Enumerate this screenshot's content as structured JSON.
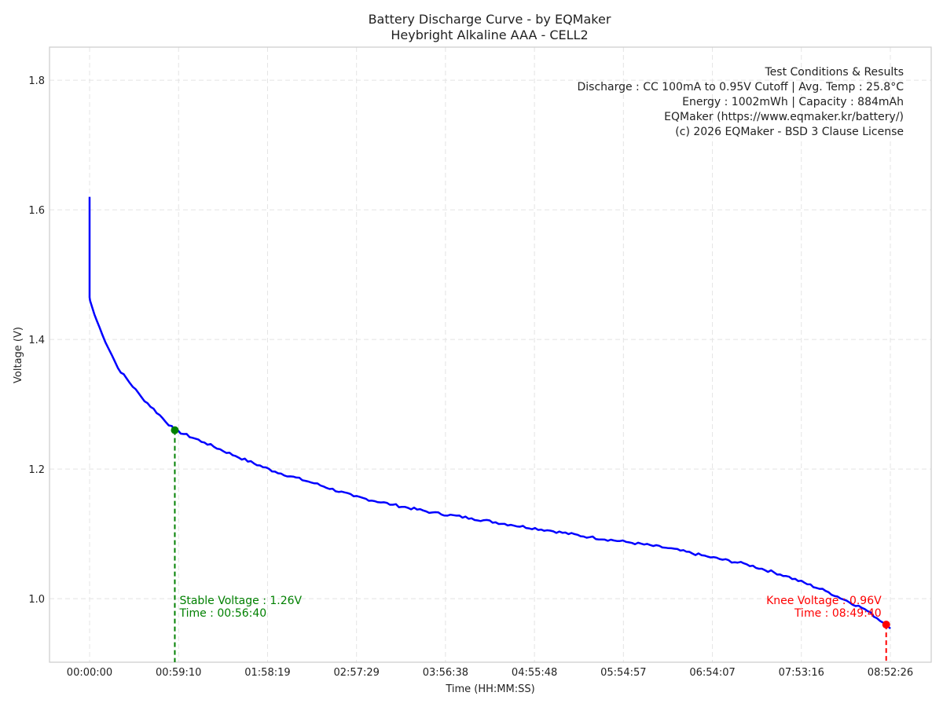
{
  "chart_data": {
    "type": "line",
    "title": "Battery Discharge Curve - by EQMaker",
    "subtitle": "Heybright Alkaline AAA - CELL2",
    "xlabel": "Time (HH:MM:SS)",
    "ylabel": "Voltage (V)",
    "xlim_seconds": [
      -1599,
      33576
    ],
    "ylim": [
      0.902,
      1.851
    ],
    "grid": true,
    "x_ticks": [
      {
        "t": 0,
        "label": "00:00:00"
      },
      {
        "t": 3550,
        "label": "00:59:10"
      },
      {
        "t": 7099,
        "label": "01:58:19"
      },
      {
        "t": 10649,
        "label": "02:57:29"
      },
      {
        "t": 14198,
        "label": "03:56:38"
      },
      {
        "t": 17748,
        "label": "04:55:48"
      },
      {
        "t": 21297,
        "label": "05:54:57"
      },
      {
        "t": 24847,
        "label": "06:54:07"
      },
      {
        "t": 28396,
        "label": "07:53:16"
      },
      {
        "t": 31946,
        "label": "08:52:26"
      }
    ],
    "y_ticks": [
      {
        "v": 1.0,
        "label": "1.0"
      },
      {
        "v": 1.2,
        "label": "1.2"
      },
      {
        "v": 1.4,
        "label": "1.4"
      },
      {
        "v": 1.6,
        "label": "1.6"
      },
      {
        "v": 1.8,
        "label": "1.8"
      }
    ],
    "series": [
      {
        "name": "Voltage",
        "color": "#0000ff",
        "x": [
          0,
          0,
          20,
          188,
          502,
          1130,
          2070,
          3400,
          4580,
          5830,
          7400,
          8970,
          10540,
          12100,
          13670,
          15240,
          16800,
          18380,
          19950,
          21520,
          23090,
          24650,
          26220,
          27790,
          29360,
          30920,
          31780,
          31946
        ],
        "y": [
          1.62,
          1.465,
          1.46,
          1.439,
          1.408,
          1.356,
          1.311,
          1.26,
          1.241,
          1.22,
          1.196,
          1.178,
          1.158,
          1.145,
          1.133,
          1.124,
          1.114,
          1.105,
          1.095,
          1.087,
          1.078,
          1.065,
          1.053,
          1.035,
          1.012,
          0.984,
          0.96,
          0.954
        ]
      }
    ],
    "markers": [
      {
        "name": "stable",
        "t": 3400,
        "v": 1.26,
        "color": "#008000",
        "line1": "Stable Voltage : 1.26V",
        "line2": "Time : 00:56:40"
      },
      {
        "name": "knee",
        "t": 31780,
        "v": 0.96,
        "color": "#ff0000",
        "line1": "Knee Voltage : 0.96V",
        "line2": "Time : 08:49:40"
      }
    ],
    "info_box": [
      "Test Conditions & Results",
      "Discharge : CC 100mA to 0.95V Cutoff | Avg. Temp : 25.8°C",
      "Energy : 1002mWh | Capacity : 884mAh",
      "EQMaker (https://www.eqmaker.kr/battery/)",
      "(c) 2026 EQMaker - BSD 3 Clause License"
    ]
  }
}
